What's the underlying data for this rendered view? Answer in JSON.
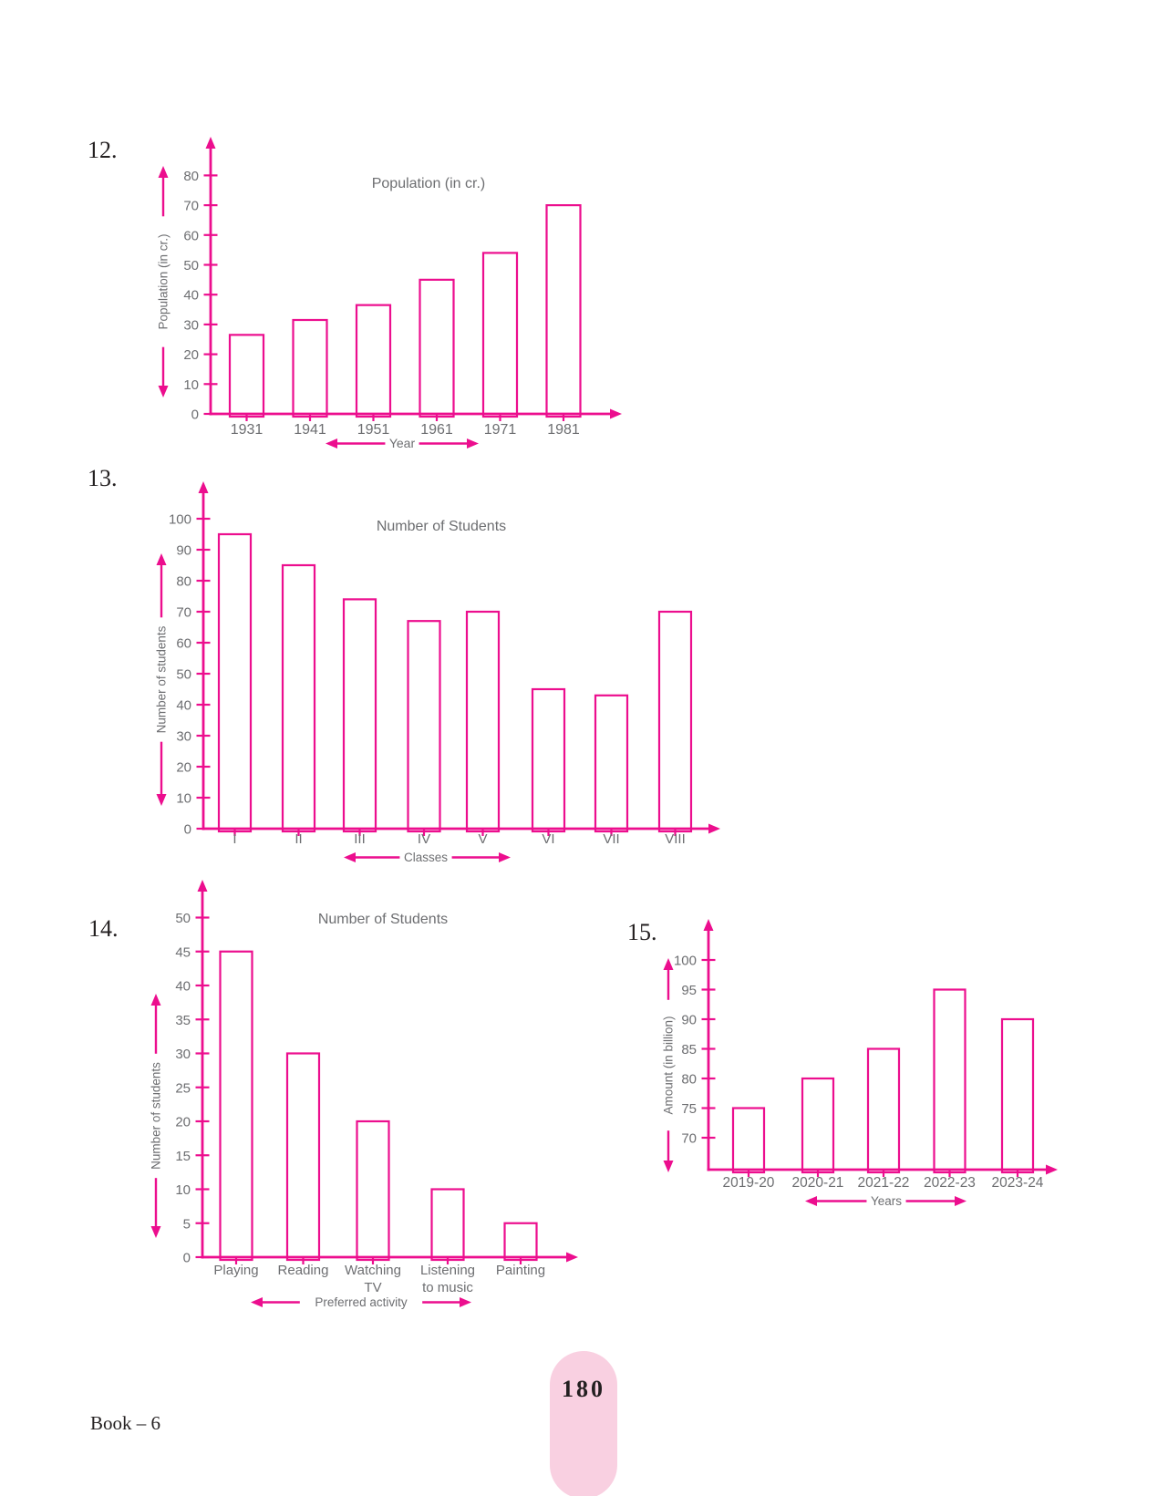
{
  "page": {
    "background": "#ffffff",
    "footer": {
      "book_label": "Book – 6",
      "page_number": "180"
    },
    "colors": {
      "magenta": "#ec0e8e",
      "text_gray": "#6d6e71",
      "text_dark": "#231f20",
      "pill_pink": "#f9d0e1"
    }
  },
  "chart_data": [
    {
      "id": "q12",
      "question_number": "12.",
      "type": "bar",
      "title": "Population (in cr.)",
      "ylabel": "Population (in cr.)",
      "xlabel": "Year",
      "categories": [
        "1931",
        "1941",
        "1951",
        "1961",
        "1971",
        "1981"
      ],
      "values": [
        26.5,
        31.5,
        36.5,
        45,
        54,
        70
      ],
      "yticks": [
        0,
        10,
        20,
        30,
        40,
        50,
        60,
        70,
        80
      ],
      "ylim": [
        0,
        90
      ],
      "grid": false,
      "legend": "none",
      "bar_fill": "white",
      "bar_outline": "magenta"
    },
    {
      "id": "q13",
      "question_number": "13.",
      "type": "bar",
      "title": "Number of Students",
      "ylabel": "Number of students",
      "xlabel": "Classes",
      "categories": [
        "I",
        "II",
        "III",
        "IV",
        "V",
        "VI",
        "VII",
        "VIII"
      ],
      "values": [
        95,
        85,
        74,
        67,
        70,
        45,
        43,
        70
      ],
      "yticks": [
        0,
        10,
        20,
        30,
        40,
        50,
        60,
        70,
        80,
        90,
        100
      ],
      "ylim": [
        0,
        112
      ],
      "grid": false,
      "legend": "none",
      "bar_fill": "white",
      "bar_outline": "magenta"
    },
    {
      "id": "q14",
      "question_number": "14.",
      "type": "bar",
      "title": "Number of Students",
      "ylabel": "Number of students",
      "xlabel": "Preferred activity",
      "categories": [
        "Playing",
        "Reading",
        "Watching\nTV",
        "Listening\nto music",
        "Painting"
      ],
      "values": [
        45,
        30,
        20,
        10,
        5
      ],
      "yticks": [
        0,
        5,
        10,
        15,
        20,
        25,
        30,
        35,
        40,
        45,
        50
      ],
      "ylim": [
        0,
        56
      ],
      "grid": false,
      "legend": "none",
      "bar_fill": "white",
      "bar_outline": "magenta"
    },
    {
      "id": "q15",
      "question_number": "15.",
      "type": "bar",
      "title": "",
      "ylabel": "Amount (in billion)",
      "xlabel": "Years",
      "categories": [
        "2019-20",
        "2020-21",
        "2021-22",
        "2022-23",
        "2023-24"
      ],
      "values": [
        75,
        80,
        85,
        95,
        90
      ],
      "yticks": [
        70,
        75,
        80,
        85,
        90,
        95,
        100
      ],
      "ylim": [
        64,
        107
      ],
      "y_axis_truncated": true,
      "grid": false,
      "legend": "none",
      "bar_fill": "white",
      "bar_outline": "magenta"
    }
  ]
}
